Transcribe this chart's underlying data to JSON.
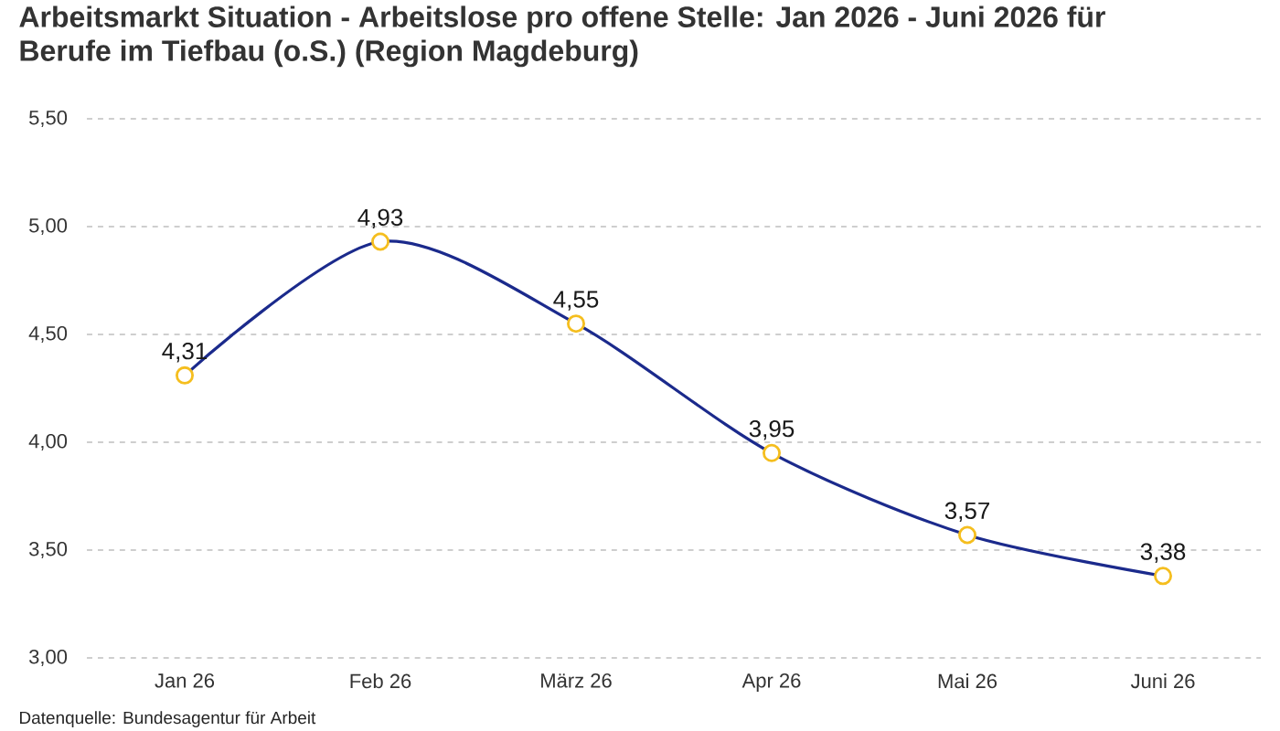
{
  "chart_data": {
    "type": "line",
    "title": "Arbeitsmarkt Situation - Arbeitslose pro offene Stelle: Jan 2026 - Juni 2026 für Berufe im Tiefbau (o.S.) (Region Magdeburg)",
    "categories": [
      "Jan 26",
      "Feb 26",
      "März 26",
      "Apr 26",
      "Mai 26",
      "Juni 26"
    ],
    "values": [
      4.31,
      4.93,
      4.55,
      3.95,
      3.57,
      3.38
    ],
    "value_labels": [
      "4,31",
      "4,93",
      "4,55",
      "3,95",
      "3,57",
      "3,38"
    ],
    "color": "#1b2a8c",
    "ylim": [
      3,
      5.5
    ],
    "yticks": [
      {
        "value": 3,
        "label": "3,00"
      },
      {
        "value": 3.5,
        "label": "3,50"
      },
      {
        "value": 4,
        "label": "4,00"
      },
      {
        "value": 4.5,
        "label": "4,50"
      },
      {
        "value": 5,
        "label": "5,00"
      },
      {
        "value": 5.5,
        "label": "5,50"
      }
    ],
    "grid": "y",
    "marker": "circle",
    "annotations": [
      "Datenquelle: Bundesagentur für Arbeit"
    ]
  }
}
